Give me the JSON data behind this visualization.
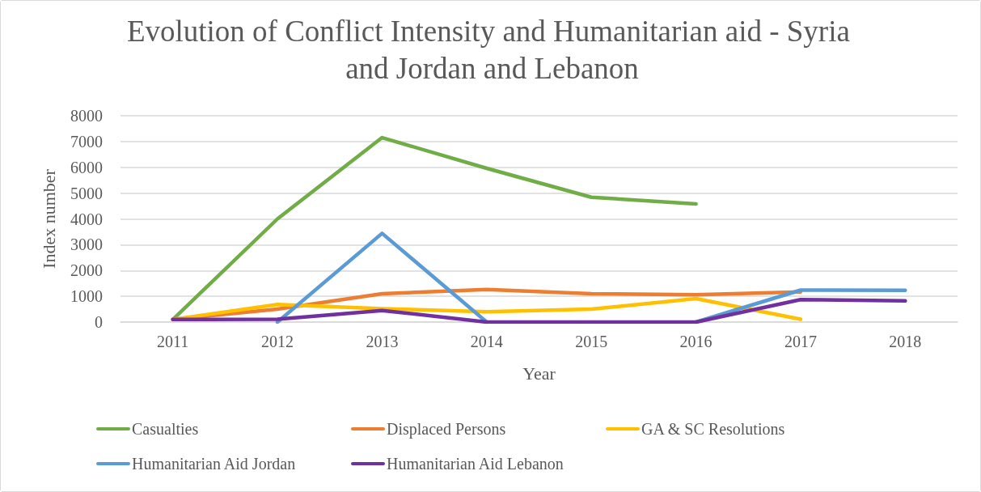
{
  "chart_data": {
    "type": "line",
    "title": "Evolution of Conflict Intensity and Humanitarian aid - Syria and Jordan and Lebanon",
    "xlabel": "Year",
    "ylabel": "Index number",
    "categories": [
      "2011",
      "2012",
      "2013",
      "2014",
      "2015",
      "2016",
      "2017",
      "2018"
    ],
    "series": [
      {
        "name": "Casualties",
        "color": "#70ad47",
        "values": [
          100,
          4000,
          7150,
          5960,
          4840,
          4580,
          null,
          null
        ]
      },
      {
        "name": "Displaced Persons",
        "color": "#ed7d31",
        "values": [
          100,
          500,
          1100,
          1260,
          1100,
          1060,
          1170,
          null
        ]
      },
      {
        "name": "GA & SC Resolutions",
        "color": "#ffc000",
        "values": [
          100,
          680,
          520,
          400,
          500,
          910,
          110,
          null
        ]
      },
      {
        "name": "Humanitarian Aid Jordan",
        "color": "#5b9bd5",
        "values": [
          null,
          0,
          3440,
          0,
          null,
          0,
          1240,
          1230
        ]
      },
      {
        "name": "Humanitarian Aid Lebanon",
        "color": "#7030a0",
        "values": [
          100,
          110,
          450,
          0,
          0,
          0,
          870,
          820
        ]
      }
    ],
    "ylim": [
      0,
      8000
    ],
    "yticks": [
      0,
      1000,
      2000,
      3000,
      4000,
      5000,
      6000,
      7000,
      8000
    ],
    "grid": "y",
    "legend": "bottom",
    "marker": "none",
    "line_style": "solid"
  }
}
